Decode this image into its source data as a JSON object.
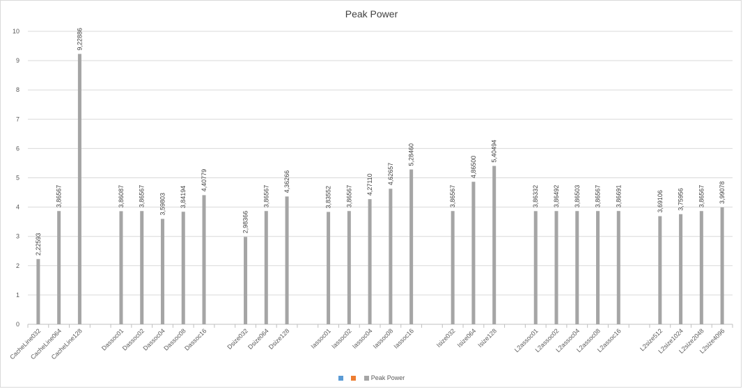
{
  "chart_data": {
    "type": "bar",
    "title": "Peak Power",
    "xlabel": "",
    "ylabel": "",
    "ylim": [
      0,
      10
    ],
    "yticks": [
      0,
      1,
      2,
      3,
      4,
      5,
      6,
      7,
      8,
      9,
      10
    ],
    "ytick_labels": [
      "0",
      "1",
      "2",
      "3",
      "4",
      "5",
      "6",
      "7",
      "8",
      "9",
      "10"
    ],
    "grid": true,
    "legend_position": "bottom",
    "bar_color": "#a5a5a5",
    "groups": [
      {
        "categories": [
          "CacheLine032",
          "CacheLine064",
          "CacheLine128"
        ],
        "values": [
          2.22593,
          3.86567,
          9.22886
        ],
        "labels": [
          "2,22593",
          "3,86567",
          "9,22886"
        ]
      },
      {
        "categories": [
          "Dassoc01",
          "Dassoc02",
          "Dassoc04",
          "Dassoc08",
          "Dassoc16"
        ],
        "values": [
          3.86087,
          3.86567,
          3.59803,
          3.84194,
          4.40779
        ],
        "labels": [
          "3,86087",
          "3,86567",
          "3,59803",
          "3,84194",
          "4,40779"
        ]
      },
      {
        "categories": [
          "Dsize032",
          "Dsize064",
          "Dsize128"
        ],
        "values": [
          2.98366,
          3.86567,
          4.36266
        ],
        "labels": [
          "2,98366",
          "3,86567",
          "4,36266"
        ]
      },
      {
        "categories": [
          "Iassoc01",
          "Iassoc02",
          "Iassoc04",
          "Iassoc08",
          "Iassoc16"
        ],
        "values": [
          3.83552,
          3.86567,
          4.2711,
          4.62657,
          5.2846
        ],
        "labels": [
          "3,83552",
          "3,86567",
          "4,27110",
          "4,62657",
          "5,28460"
        ]
      },
      {
        "categories": [
          "Isize032",
          "Isize064",
          "Isize128"
        ],
        "values": [
          3.86567,
          4.865,
          5.40494
        ],
        "labels": [
          "3,86567",
          "4,86500",
          "5,40494"
        ]
      },
      {
        "categories": [
          "L2assoc01",
          "L2assoc02",
          "L2assoc04",
          "L2assoc08",
          "L2assoc16"
        ],
        "values": [
          3.86332,
          3.86492,
          3.86503,
          3.86567,
          3.86691
        ],
        "labels": [
          "3,86332",
          "3,86492",
          "3,86503",
          "3,86567",
          "3,86691"
        ]
      },
      {
        "categories": [
          "L2size512",
          "L2size1024",
          "L2size2048",
          "L2size4096"
        ],
        "values": [
          3.69106,
          3.75956,
          3.86567,
          3.99078
        ],
        "labels": [
          "3,69106",
          "3,75956",
          "3,86567",
          "3,99078"
        ]
      }
    ],
    "legend": [
      {
        "name": "",
        "color": "#5b9bd5"
      },
      {
        "name": "",
        "color": "#ed7d31"
      },
      {
        "name": "Peak Power",
        "color": "#a5a5a5"
      }
    ]
  }
}
